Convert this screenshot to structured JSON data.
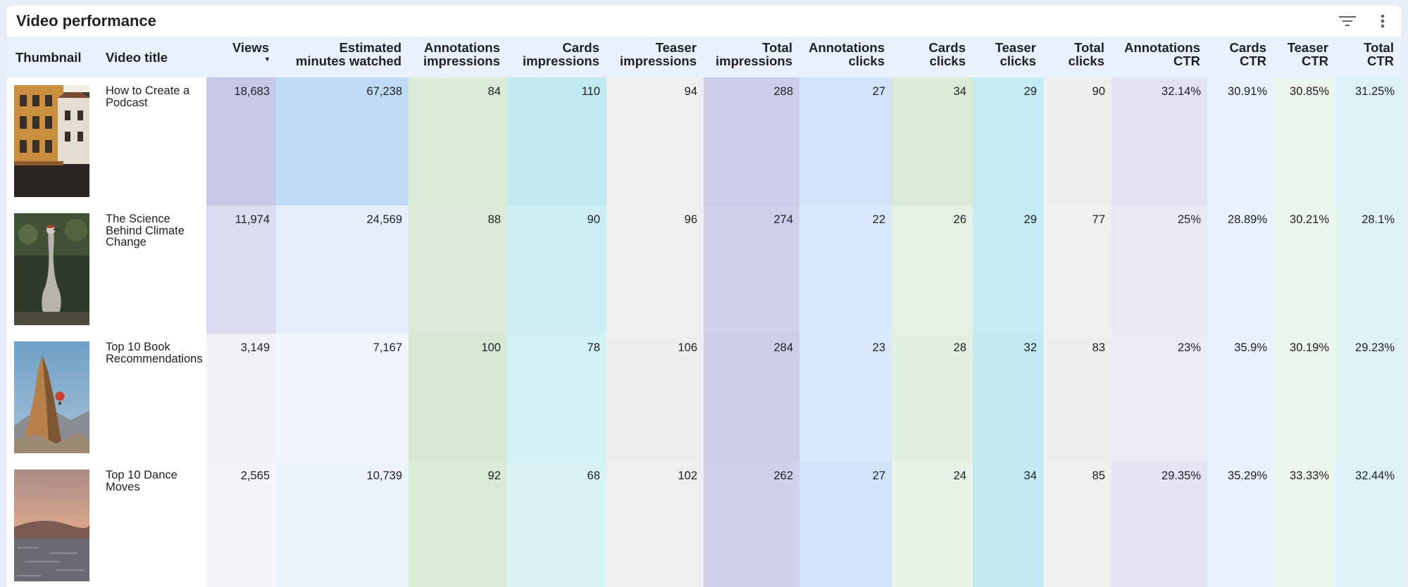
{
  "card": {
    "title": "Video performance",
    "icons": [
      "filter-icon",
      "more-vert-icon"
    ]
  },
  "columns": [
    {
      "line1": "Thumbnail",
      "line2": ""
    },
    {
      "line1": "Video title",
      "line2": ""
    },
    {
      "line1": "Views",
      "line2": "▾"
    },
    {
      "line1": "Estimated",
      "line2": "minutes watched"
    },
    {
      "line1": "Annotations",
      "line2": "impressions"
    },
    {
      "line1": "Cards",
      "line2": "impressions"
    },
    {
      "line1": "Teaser",
      "line2": "impressions"
    },
    {
      "line1": "Total",
      "line2": "impressions"
    },
    {
      "line1": "Annotations",
      "line2": "clicks"
    },
    {
      "line1": "Cards",
      "line2": "clicks"
    },
    {
      "line1": "Teaser",
      "line2": "clicks"
    },
    {
      "line1": "Total",
      "line2": "clicks"
    },
    {
      "line1": "Annotations",
      "line2": "CTR"
    },
    {
      "line1": "Cards",
      "line2": "CTR"
    },
    {
      "line1": "Teaser",
      "line2": "CTR"
    },
    {
      "line1": "Total",
      "line2": "CTR"
    }
  ],
  "rows": [
    {
      "thumbnail": "building-street-thumbnail",
      "title": "How to Create a Podcast",
      "cells": [
        "18,683",
        "67,238",
        "84",
        "110",
        "94",
        "288",
        "27",
        "34",
        "29",
        "90",
        "32.14%",
        "30.91%",
        "30.85%",
        "31.25%"
      ]
    },
    {
      "thumbnail": "crane-bird-thumbnail",
      "title": "The Science Behind Climate Change",
      "cells": [
        "11,974",
        "24,569",
        "88",
        "90",
        "96",
        "274",
        "22",
        "26",
        "29",
        "77",
        "25%",
        "28.89%",
        "30.21%",
        "28.1%"
      ]
    },
    {
      "thumbnail": "rock-balloon-thumbnail",
      "title": "Top 10 Book Recommendations",
      "cells": [
        "3,149",
        "7,167",
        "100",
        "78",
        "106",
        "284",
        "23",
        "28",
        "32",
        "83",
        "23%",
        "35.9%",
        "30.19%",
        "29.23%"
      ]
    },
    {
      "thumbnail": "sunset-sea-thumbnail",
      "title": "Top 10 Dance Moves",
      "cells": [
        "2,565",
        "10,739",
        "92",
        "68",
        "102",
        "262",
        "27",
        "24",
        "34",
        "85",
        "29.35%",
        "35.29%",
        "33.33%",
        "32.44%"
      ]
    }
  ],
  "heatmap_colors": [
    [
      "#c8c9e8",
      "#c0dbf6",
      "#d9ead7",
      "#c1eaf0",
      "#efefef",
      "#cdcde9",
      "#d0e3f9",
      "#d9ead7",
      "#c3ebf1",
      "#eeeeee",
      "#e2e2f3",
      "#e9f1fc",
      "#ecf5ec",
      "#dcf2f6"
    ],
    [
      "#dbdcef",
      "#e6f0fc",
      "#dae9d8",
      "#cbeef2",
      "#efefef",
      "#cfcfea",
      "#d8e8fa",
      "#e4f1e3",
      "#c3ebf1",
      "#efefef",
      "#e9e9f5",
      "#e9f1fc",
      "#ecf5ec",
      "#dff3f6"
    ],
    [
      "#f2f1f8",
      "#f1f5fd",
      "#d6e8d4",
      "#d3f0f4",
      "#eeeeee",
      "#cecee9",
      "#d8e8fa",
      "#e1efe0",
      "#c1eaf0",
      "#eeeeee",
      "#ebebf6",
      "#e9f1fc",
      "#ecf5ec",
      "#dff3f6"
    ],
    [
      "#f3f3f9",
      "#edf3fc",
      "#d9ead7",
      "#d8f1f5",
      "#efefef",
      "#d0d0ea",
      "#d0e3f9",
      "#e6f2e5",
      "#c1eaf0",
      "#efefef",
      "#e4e4f4",
      "#e9f1fc",
      "#ecf5ec",
      "#dcf2f6"
    ]
  ]
}
